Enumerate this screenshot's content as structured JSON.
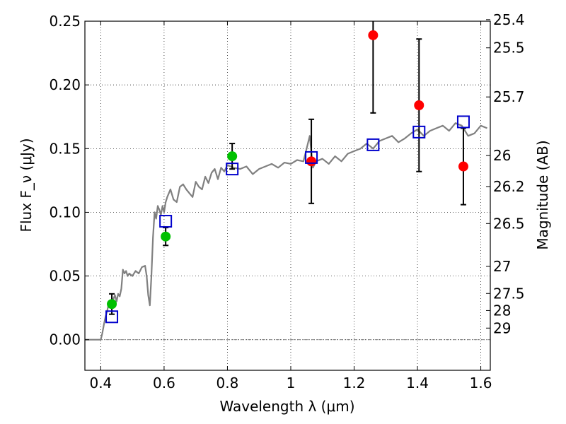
{
  "chart_data": {
    "type": "scatter",
    "xlabel": "Wavelength λ (μm)",
    "ylabel": "Flux F_ν (μJy)",
    "ylabel_right": "Magnitude (AB)",
    "xlim": [
      0.35,
      1.63
    ],
    "ylim": [
      -0.024,
      0.25
    ],
    "grid": true,
    "x_ticks": [
      {
        "value": 0.4,
        "label": "0.4"
      },
      {
        "value": 0.6,
        "label": "0.6"
      },
      {
        "value": 0.8,
        "label": "0.8"
      },
      {
        "value": 1.0,
        "label": "1"
      },
      {
        "value": 1.2,
        "label": "1.2"
      },
      {
        "value": 1.4,
        "label": "1.4"
      },
      {
        "value": 1.6,
        "label": "1.6"
      }
    ],
    "y_ticks": [
      {
        "value": 0.0,
        "label": "0.00"
      },
      {
        "value": 0.05,
        "label": "0.05"
      },
      {
        "value": 0.1,
        "label": "0.10"
      },
      {
        "value": 0.15,
        "label": "0.15"
      },
      {
        "value": 0.2,
        "label": "0.20"
      },
      {
        "value": 0.25,
        "label": "0.25"
      }
    ],
    "y2_ticks": [
      {
        "mag": 25.4,
        "label": "25.4"
      },
      {
        "mag": 25.5,
        "label": "25.5"
      },
      {
        "mag": 25.7,
        "label": "25.7"
      },
      {
        "mag": 26.0,
        "label": "26"
      },
      {
        "mag": 26.2,
        "label": "26.2"
      },
      {
        "mag": 26.5,
        "label": "26.5"
      },
      {
        "mag": 27.0,
        "label": "27"
      },
      {
        "mag": 27.5,
        "label": "27.5"
      },
      {
        "mag": 28.0,
        "label": "28"
      },
      {
        "mag": 29.0,
        "label": "29"
      }
    ],
    "series": [
      {
        "name": "model spectrum",
        "kind": "line",
        "color": "#808080",
        "x": [
          0.35,
          0.39,
          0.4,
          0.405,
          0.41,
          0.415,
          0.42,
          0.425,
          0.43,
          0.435,
          0.44,
          0.445,
          0.45,
          0.455,
          0.46,
          0.465,
          0.47,
          0.475,
          0.48,
          0.485,
          0.49,
          0.5,
          0.51,
          0.52,
          0.53,
          0.54,
          0.545,
          0.55,
          0.555,
          0.56,
          0.565,
          0.57,
          0.575,
          0.58,
          0.585,
          0.59,
          0.595,
          0.6,
          0.605,
          0.61,
          0.62,
          0.63,
          0.64,
          0.65,
          0.66,
          0.67,
          0.68,
          0.69,
          0.7,
          0.71,
          0.72,
          0.73,
          0.74,
          0.75,
          0.76,
          0.77,
          0.78,
          0.79,
          0.8,
          0.82,
          0.84,
          0.86,
          0.88,
          0.9,
          0.92,
          0.94,
          0.96,
          0.98,
          1.0,
          1.02,
          1.04,
          1.05,
          1.06,
          1.07,
          1.08,
          1.1,
          1.12,
          1.14,
          1.16,
          1.18,
          1.2,
          1.22,
          1.24,
          1.26,
          1.28,
          1.3,
          1.32,
          1.34,
          1.36,
          1.38,
          1.4,
          1.42,
          1.44,
          1.46,
          1.48,
          1.5,
          1.52,
          1.54,
          1.56,
          1.58,
          1.6,
          1.62
        ],
        "y": [
          0.0,
          0.0,
          0.0,
          0.005,
          0.012,
          0.018,
          0.022,
          0.028,
          0.03,
          0.025,
          0.032,
          0.035,
          0.03,
          0.036,
          0.034,
          0.04,
          0.055,
          0.052,
          0.054,
          0.05,
          0.052,
          0.05,
          0.054,
          0.052,
          0.057,
          0.058,
          0.05,
          0.035,
          0.027,
          0.05,
          0.08,
          0.1,
          0.095,
          0.105,
          0.102,
          0.098,
          0.105,
          0.1,
          0.108,
          0.112,
          0.118,
          0.11,
          0.108,
          0.12,
          0.122,
          0.118,
          0.115,
          0.112,
          0.124,
          0.12,
          0.118,
          0.128,
          0.123,
          0.131,
          0.134,
          0.126,
          0.135,
          0.132,
          0.137,
          0.135,
          0.134,
          0.136,
          0.13,
          0.134,
          0.136,
          0.138,
          0.135,
          0.139,
          0.138,
          0.141,
          0.14,
          0.15,
          0.16,
          0.135,
          0.14,
          0.142,
          0.138,
          0.144,
          0.14,
          0.146,
          0.148,
          0.15,
          0.154,
          0.15,
          0.156,
          0.158,
          0.16,
          0.155,
          0.158,
          0.162,
          0.165,
          0.16,
          0.164,
          0.166,
          0.168,
          0.164,
          0.17,
          0.168,
          0.16,
          0.162,
          0.168,
          0.166
        ]
      },
      {
        "name": "green points",
        "kind": "marker",
        "marker": "circle",
        "color": "#00c000",
        "x": [
          0.435,
          0.605,
          0.815
        ],
        "y": [
          0.028,
          0.081,
          0.144
        ],
        "yerr": [
          0.008,
          0.007,
          0.01
        ]
      },
      {
        "name": "red points",
        "kind": "marker",
        "marker": "circle",
        "color": "#ff0000",
        "x": [
          1.065,
          1.26,
          1.405,
          1.545
        ],
        "y": [
          0.14,
          0.239,
          0.184,
          0.136
        ],
        "yerr": [
          0.033,
          0.061,
          0.052,
          0.03
        ]
      },
      {
        "name": "model photometry",
        "kind": "marker",
        "marker": "square-open",
        "color": "#0000cc",
        "x": [
          0.435,
          0.605,
          0.815,
          1.065,
          1.26,
          1.405,
          1.545
        ],
        "y": [
          0.018,
          0.093,
          0.134,
          0.143,
          0.153,
          0.163,
          0.171
        ]
      }
    ]
  }
}
